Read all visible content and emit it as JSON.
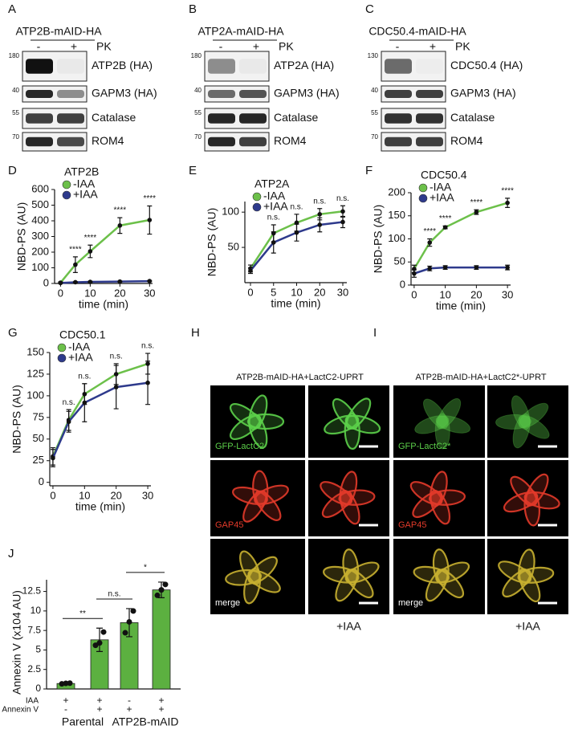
{
  "letters": [
    "A",
    "B",
    "C",
    "D",
    "E",
    "F",
    "G",
    "H",
    "I",
    "J"
  ],
  "blots": [
    {
      "title": "ATP2B-mAID-HA",
      "lanes": [
        "-",
        "+"
      ],
      "treatment": "PK",
      "bands": [
        {
          "mw": 180,
          "name": "ATP2B (HA)"
        },
        {
          "mw": 40,
          "name": "GAPM3 (HA)"
        },
        {
          "mw": 55,
          "name": "Catalase"
        },
        {
          "mw": 70,
          "name": "ROM4"
        }
      ]
    },
    {
      "title": "ATP2A-mAID-HA",
      "lanes": [
        "-",
        "+"
      ],
      "treatment": "PK",
      "bands": [
        {
          "mw": 180,
          "name": "ATP2A (HA)"
        },
        {
          "mw": 40,
          "name": "GAPM3 (HA)"
        },
        {
          "mw": 55,
          "name": "Catalase"
        },
        {
          "mw": 70,
          "name": "ROM4"
        }
      ]
    },
    {
      "title": "CDC50.4-mAID-HA",
      "lanes": [
        "-",
        "+"
      ],
      "treatment": "PK",
      "bands": [
        {
          "mw": 130,
          "name": "CDC50.4 (HA)"
        },
        {
          "mw": 40,
          "name": "GAPM3 (HA)"
        },
        {
          "mw": 55,
          "name": "Catalase"
        },
        {
          "mw": 70,
          "name": "ROM4"
        }
      ]
    }
  ],
  "chart_data": [
    {
      "type": "line",
      "title": "ATP2B",
      "xlabel": "time (min)",
      "ylabel": "NBD-PS (AU)",
      "x": [
        0,
        5,
        10,
        20,
        30
      ],
      "xlim": [
        -2,
        31
      ],
      "xticks": [
        0,
        10,
        20,
        30
      ],
      "ylim": [
        0,
        600
      ],
      "yticks": [
        0,
        100,
        200,
        300,
        400,
        500,
        600
      ],
      "series": [
        {
          "name": "-IAA",
          "color": "#6cc04a",
          "values": [
            5,
            120,
            205,
            370,
            405
          ],
          "errors": [
            5,
            50,
            40,
            50,
            90
          ]
        },
        {
          "name": "+IAA",
          "color": "#2e3a8c",
          "values": [
            3,
            8,
            10,
            12,
            15
          ],
          "errors": [
            2,
            3,
            3,
            3,
            3
          ]
        }
      ],
      "annotations": {
        "x": [
          5,
          10,
          20,
          30
        ],
        "labels": [
          "****",
          "****",
          "****",
          "****"
        ]
      }
    },
    {
      "type": "line",
      "title": "ATP2A",
      "xlabel": "time (min)",
      "ylabel": "NBD-PS (AU)",
      "categories": [
        "0",
        "5",
        "10",
        "20",
        "30"
      ],
      "ylim": [
        0,
        115
      ],
      "yticks": [
        50,
        100
      ],
      "series": [
        {
          "name": "-IAA",
          "color": "#6cc04a",
          "values": [
            20,
            70,
            85,
            97,
            101
          ],
          "errors": [
            5,
            12,
            12,
            8,
            8
          ]
        },
        {
          "name": "+IAA",
          "color": "#2e3a8c",
          "values": [
            17,
            57,
            71,
            82,
            86
          ],
          "errors": [
            4,
            15,
            12,
            10,
            8
          ]
        }
      ],
      "annotations": {
        "x": [
          "5",
          "10",
          "20",
          "30"
        ],
        "labels": [
          "n.s.",
          "n.s.",
          "n.s.",
          "n.s."
        ]
      }
    },
    {
      "type": "line",
      "title": "CDC50.4",
      "xlabel": "time (min)",
      "ylabel": "NBD-PS (AU)",
      "x": [
        0,
        5,
        10,
        20,
        30
      ],
      "xlim": [
        -1,
        31
      ],
      "xticks": [
        0,
        10,
        20,
        30
      ],
      "ylim": [
        0,
        200
      ],
      "yticks": [
        0,
        50,
        100,
        150,
        200
      ],
      "series": [
        {
          "name": "-IAA",
          "color": "#6cc04a",
          "values": [
            35,
            92,
            125,
            158,
            178
          ],
          "errors": [
            8,
            8,
            3,
            5,
            10
          ]
        },
        {
          "name": "+IAA",
          "color": "#2e3a8c",
          "values": [
            25,
            36,
            38,
            38,
            38
          ],
          "errors": [
            8,
            5,
            4,
            4,
            5
          ]
        }
      ],
      "annotations": {
        "x": [
          5,
          10,
          20,
          30
        ],
        "labels": [
          "****",
          "****",
          "****",
          "****"
        ]
      }
    },
    {
      "type": "line",
      "title": "CDC50.1",
      "xlabel": "time (min)",
      "ylabel": "NBD-PS (AU)",
      "x": [
        0,
        5,
        10,
        20,
        30
      ],
      "xlim": [
        -1,
        31
      ],
      "xticks": [
        0,
        10,
        20,
        30
      ],
      "ylim": [
        -4,
        150
      ],
      "yticks": [
        0,
        25,
        50,
        75,
        100,
        125,
        150
      ],
      "series": [
        {
          "name": "-IAA",
          "color": "#6cc04a",
          "values": [
            30,
            72,
            102,
            125,
            137
          ],
          "errors": [
            10,
            12,
            12,
            12,
            12
          ]
        },
        {
          "name": "+IAA",
          "color": "#2e3a8c",
          "values": [
            28,
            70,
            92,
            110,
            115
          ],
          "errors": [
            10,
            12,
            22,
            25,
            25
          ]
        }
      ],
      "annotations": {
        "x": [
          5,
          10,
          20,
          30
        ],
        "labels": [
          "n.s.",
          "n.s.",
          "n.s.",
          "n.s."
        ]
      }
    },
    {
      "type": "bar",
      "ylabel": "Annexin V (x104 AU)",
      "color": "#5cb040",
      "values": [
        0.7,
        6.3,
        8.5,
        12.7
      ],
      "errors": [
        0.1,
        1.5,
        1.8,
        1.0
      ],
      "points": [
        [
          0.65,
          0.72,
          0.75
        ],
        [
          5.6,
          5.9,
          7.3
        ],
        [
          7.2,
          8.6,
          10.0
        ],
        [
          12.0,
          12.7,
          13.4
        ]
      ],
      "ylim": [
        0,
        14
      ],
      "yticks": [
        0,
        2.5,
        5,
        7.5,
        10,
        12.5
      ],
      "rows": [
        {
          "name": "IAA",
          "signs": [
            "+",
            "+",
            "-",
            "+"
          ]
        },
        {
          "name": "Annexin V",
          "signs": [
            "-",
            "+",
            "+",
            "+"
          ]
        }
      ],
      "groups": [
        "Parental",
        "ATP2B-mAID"
      ],
      "significance": [
        "**",
        "n.s.",
        "*"
      ]
    }
  ],
  "microscopy": [
    {
      "title": "ATP2B-mAID-HA+LactC2-UPRT",
      "channels": [
        "GFP-LactC2",
        "GAP45",
        "merge"
      ],
      "condition": "+IAA"
    },
    {
      "title": "ATP2B-mAID-HA+LactC2*-UPRT",
      "channels": [
        "GFP-LactC2*",
        "GAP45",
        "merge"
      ],
      "condition": "+IAA"
    }
  ]
}
